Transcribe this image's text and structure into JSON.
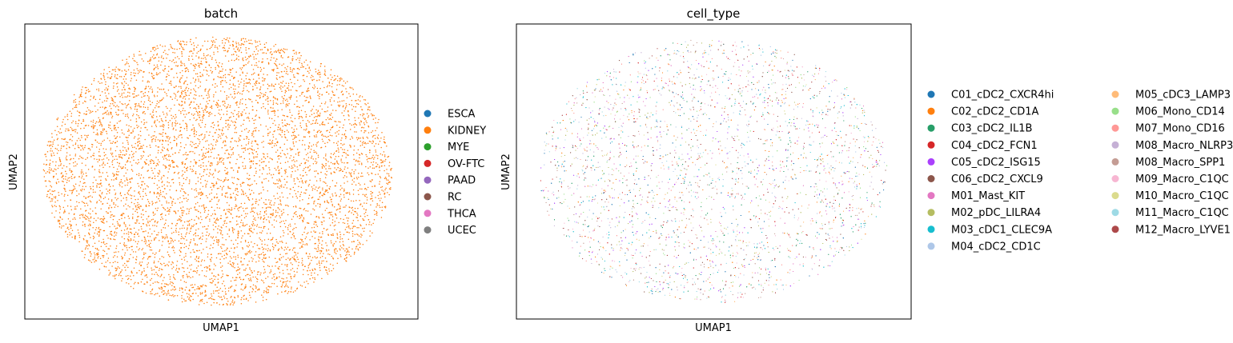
{
  "chart_data": [
    {
      "type": "scatter",
      "title": "batch",
      "xlabel": "UMAP1",
      "ylabel": "UMAP2",
      "grid": false,
      "ticks": false,
      "legend_placement": "right",
      "highlighted_series": "KIDNEY",
      "series": [
        {
          "name": "ESCA",
          "color": "#1f77b4"
        },
        {
          "name": "KIDNEY",
          "color": "#ff7f0e"
        },
        {
          "name": "MYE",
          "color": "#2ca02c"
        },
        {
          "name": "OV-FTC",
          "color": "#d62728"
        },
        {
          "name": "PAAD",
          "color": "#9467bd"
        },
        {
          "name": "RC",
          "color": "#8c564b"
        },
        {
          "name": "THCA",
          "color": "#e377c2"
        },
        {
          "name": "UCEC",
          "color": "#7f7f7f"
        }
      ]
    },
    {
      "type": "scatter",
      "title": "cell_type",
      "xlabel": "UMAP1",
      "ylabel": "UMAP2",
      "grid": false,
      "ticks": false,
      "legend_placement": "right",
      "legend_columns": 2,
      "series": [
        {
          "name": "C01_cDC2_CXCR4hi",
          "color": "#1f77b4"
        },
        {
          "name": "C02_cDC2_CD1A",
          "color": "#ff7f0e"
        },
        {
          "name": "C03_cDC2_IL1B",
          "color": "#279e68"
        },
        {
          "name": "C04_cDC2_FCN1",
          "color": "#d62728"
        },
        {
          "name": "C05_cDC2_ISG15",
          "color": "#aa40fc"
        },
        {
          "name": "C06_cDC2_CXCL9",
          "color": "#8c564b"
        },
        {
          "name": "M01_Mast_KIT",
          "color": "#e377c2"
        },
        {
          "name": "M02_pDC_LILRA4",
          "color": "#b5bd61"
        },
        {
          "name": "M03_cDC1_CLEC9A",
          "color": "#17becf"
        },
        {
          "name": "M04_cDC2_CD1C",
          "color": "#aec7e8"
        },
        {
          "name": "M05_cDC3_LAMP3",
          "color": "#ffbb78"
        },
        {
          "name": "M06_Mono_CD14",
          "color": "#98df8a"
        },
        {
          "name": "M07_Mono_CD16",
          "color": "#ff9896"
        },
        {
          "name": "M08_Macro_NLRP3",
          "color": "#c5b0d5"
        },
        {
          "name": "M08_Macro_SPP1",
          "color": "#c49c94"
        },
        {
          "name": "M09_Macro_C1QC",
          "color": "#f7b6d2"
        },
        {
          "name": "M10_Macro_C1QC",
          "color": "#dbdb8d"
        },
        {
          "name": "M11_Macro_C1QC",
          "color": "#9edae5"
        },
        {
          "name": "M12_Macro_LYVE1",
          "color": "#ad494a"
        }
      ]
    }
  ]
}
